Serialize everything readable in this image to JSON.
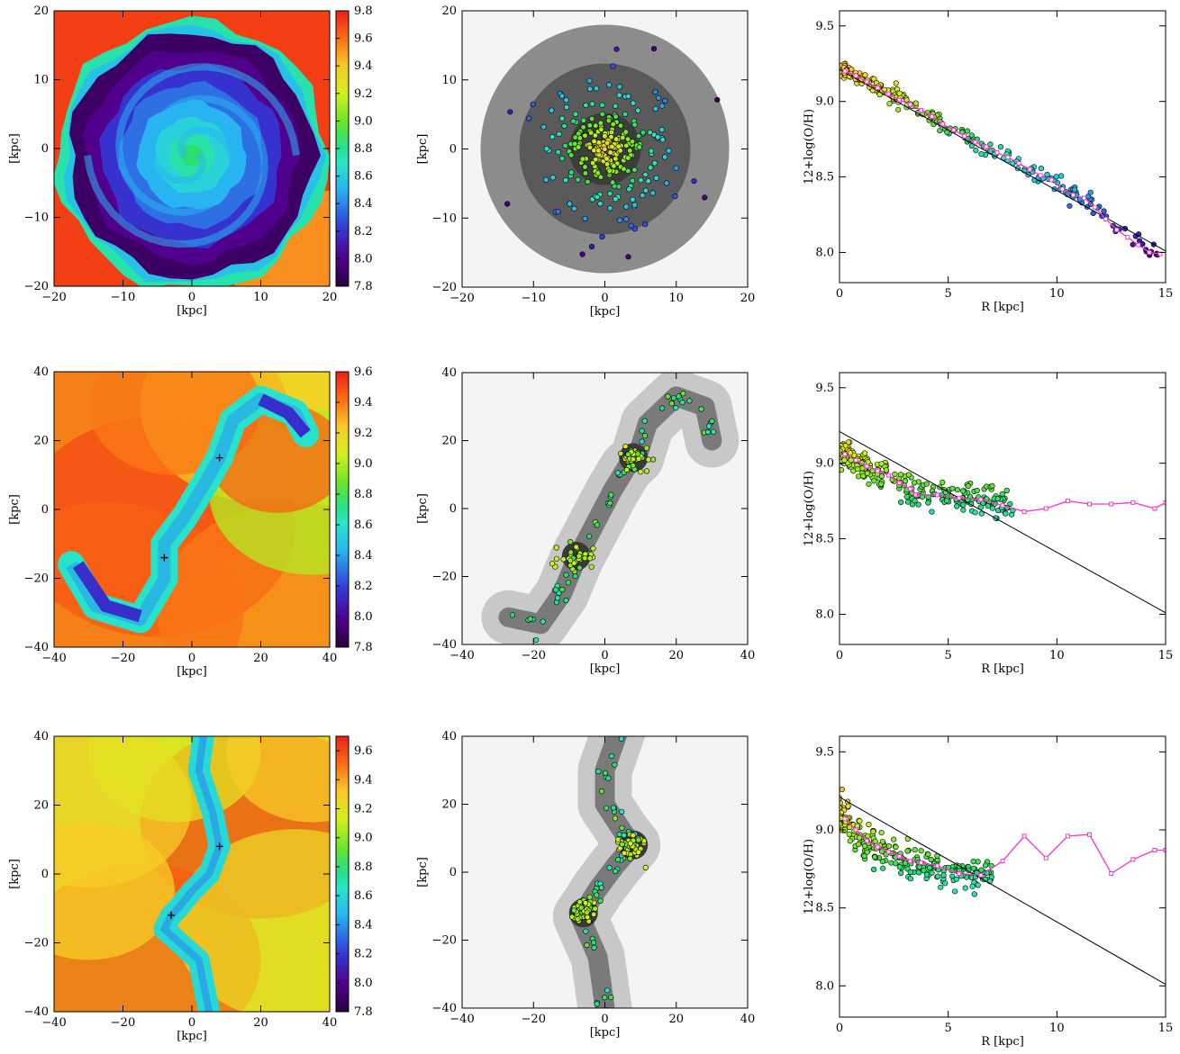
{
  "figure": {
    "rows": 3,
    "columns": [
      "metallicity-map",
      "stellar-density-map",
      "radial-gradient"
    ]
  },
  "colors": {
    "gradient_line": "#000000",
    "binned_profile": "#ff33cc",
    "point_stroke": "#000000"
  },
  "chart_data": [
    {
      "type": "heatmap",
      "panel": "row1-col1",
      "colormap": "rainbow",
      "xlabel": "[kpc]",
      "ylabel": "[kpc]",
      "xlim": [
        -20,
        20
      ],
      "ylim": [
        -20,
        20
      ],
      "xticks": [
        "−20",
        "−10",
        "0",
        "10",
        "20"
      ],
      "yticks": [
        "−20",
        "−10",
        "0",
        "10",
        "20"
      ],
      "colorbar": {
        "min": 7.8,
        "max": 9.8,
        "ticks": [
          "7.8",
          "8.0",
          "8.2",
          "8.4",
          "8.6",
          "8.8",
          "9.0",
          "9.2",
          "9.4",
          "9.6",
          "9.8"
        ]
      },
      "description_values": {
        "background": 9.7,
        "disk_edge": 7.9,
        "disk_mid": 8.3,
        "center": 8.8
      }
    },
    {
      "type": "scatter",
      "panel": "row1-col2",
      "background": "grayscale-density",
      "xlabel": "[kpc]",
      "ylabel": "[kpc]",
      "xlim": [
        -20,
        20
      ],
      "ylim": [
        -20,
        20
      ],
      "xticks": [
        "−20",
        "−10",
        "0",
        "10",
        "20"
      ],
      "yticks": [
        "−20",
        "−10",
        "0",
        "10",
        "20"
      ],
      "points_note": "star-forming regions, color = 12+log(O/H)"
    },
    {
      "type": "line",
      "panel": "row1-col3",
      "xlabel": "R [kpc]",
      "ylabel": "12+log(O/H)",
      "xlim": [
        0,
        15
      ],
      "ylim": [
        7.8,
        9.6
      ],
      "xticks": [
        "0",
        "5",
        "10",
        "15"
      ],
      "yticks": [
        "8.0",
        "8.5",
        "9.0",
        "9.5"
      ],
      "series": [
        {
          "kind": "line",
          "x": [
            0,
            15
          ],
          "y": [
            9.21,
            8.01
          ]
        },
        {
          "kind": "binned",
          "x": [
            0.25,
            0.75,
            1.25,
            1.75,
            2.25,
            2.75,
            3.25,
            3.75,
            4.25,
            4.75,
            5.25,
            5.75,
            6.25,
            6.75,
            7.25,
            7.75,
            8.25,
            8.75,
            9.25,
            9.75,
            10.25,
            10.75,
            11.25,
            11.75,
            12.25,
            12.75,
            13.25,
            13.75,
            14.25,
            14.75
          ],
          "y": [
            9.2,
            9.17,
            9.13,
            9.09,
            9.05,
            9.01,
            8.98,
            8.94,
            8.9,
            8.85,
            8.81,
            8.77,
            8.73,
            8.7,
            8.66,
            8.63,
            8.59,
            8.55,
            8.51,
            8.48,
            8.42,
            8.38,
            8.36,
            8.3,
            8.22,
            8.15,
            8.1,
            8.05,
            8.0,
            7.99
          ]
        }
      ]
    },
    {
      "type": "heatmap",
      "panel": "row2-col1",
      "colormap": "rainbow",
      "xlabel": "[kpc]",
      "ylabel": "[kpc]",
      "xlim": [
        -40,
        40
      ],
      "ylim": [
        -40,
        40
      ],
      "xticks": [
        "−40",
        "−20",
        "0",
        "20",
        "40"
      ],
      "yticks": [
        "−40",
        "−20",
        "0",
        "20",
        "40"
      ],
      "colorbar": {
        "min": 7.8,
        "max": 9.6,
        "ticks": [
          "7.8",
          "8.0",
          "8.2",
          "8.4",
          "8.6",
          "8.8",
          "9.0",
          "9.2",
          "9.4",
          "9.6"
        ]
      },
      "markers": [
        [
          8,
          15
        ],
        [
          -8,
          -14
        ]
      ]
    },
    {
      "type": "scatter",
      "panel": "row2-col2",
      "background": "grayscale-density",
      "xlabel": "[kpc]",
      "ylabel": "[kpc]",
      "xlim": [
        -40,
        40
      ],
      "ylim": [
        -40,
        40
      ],
      "xticks": [
        "−40",
        "−20",
        "0",
        "20",
        "40"
      ],
      "yticks": [
        "−40",
        "−20",
        "0",
        "20",
        "40"
      ]
    },
    {
      "type": "line",
      "panel": "row2-col3",
      "xlabel": "R [kpc]",
      "ylabel": "12+log(O/H)",
      "xlim": [
        0,
        15
      ],
      "ylim": [
        7.8,
        9.6
      ],
      "xticks": [
        "0",
        "5",
        "10",
        "15"
      ],
      "yticks": [
        "8.0",
        "8.5",
        "9.0",
        "9.5"
      ],
      "series": [
        {
          "kind": "line",
          "x": [
            0,
            15
          ],
          "y": [
            9.21,
            8.01
          ]
        },
        {
          "kind": "binned",
          "x": [
            0.25,
            0.75,
            1.25,
            1.75,
            2.25,
            2.75,
            3.25,
            3.5,
            4.5,
            5.5,
            6.5,
            7.5,
            8.5,
            9.5,
            10.5,
            11.5,
            12.5,
            13.5,
            14.5,
            15
          ],
          "y": [
            9.06,
            9.02,
            8.98,
            8.95,
            8.92,
            8.87,
            8.83,
            8.79,
            8.79,
            8.77,
            8.76,
            8.72,
            8.68,
            8.7,
            8.75,
            8.73,
            8.73,
            8.74,
            8.7,
            8.74
          ]
        }
      ]
    },
    {
      "type": "heatmap",
      "panel": "row3-col1",
      "colormap": "rainbow",
      "xlabel": "[kpc]",
      "ylabel": "[kpc]",
      "xlim": [
        -40,
        40
      ],
      "ylim": [
        -40,
        40
      ],
      "xticks": [
        "−40",
        "−20",
        "0",
        "20",
        "40"
      ],
      "yticks": [
        "−40",
        "−20",
        "0",
        "20",
        "40"
      ],
      "colorbar": {
        "min": 7.8,
        "max": 9.7,
        "ticks": [
          "7.8",
          "8.0",
          "8.2",
          "8.4",
          "8.6",
          "8.8",
          "9.0",
          "9.2",
          "9.4",
          "9.6"
        ]
      },
      "markers": [
        [
          8,
          8
        ],
        [
          -6,
          -12
        ]
      ]
    },
    {
      "type": "scatter",
      "panel": "row3-col2",
      "background": "grayscale-density",
      "xlabel": "[kpc]",
      "ylabel": "[kpc]",
      "xlim": [
        -40,
        40
      ],
      "ylim": [
        -40,
        40
      ],
      "xticks": [
        "−40",
        "−20",
        "0",
        "20",
        "40"
      ],
      "yticks": [
        "−40",
        "−20",
        "0",
        "20",
        "40"
      ]
    },
    {
      "type": "line",
      "panel": "row3-col3",
      "xlabel": "R [kpc]",
      "ylabel": "12+log(O/H)",
      "xlim": [
        0,
        15
      ],
      "ylim": [
        7.8,
        9.6
      ],
      "xticks": [
        "0",
        "5",
        "10",
        "15"
      ],
      "yticks": [
        "8.0",
        "8.5",
        "9.0",
        "9.5"
      ],
      "series": [
        {
          "kind": "line",
          "x": [
            0,
            15
          ],
          "y": [
            9.21,
            8.01
          ]
        },
        {
          "kind": "binned",
          "x": [
            0.25,
            0.75,
            1.25,
            1.75,
            2.25,
            2.75,
            3.25,
            3.75,
            4.5,
            5.5,
            6.5,
            7.5,
            8.5,
            9.5,
            10.5,
            11.5,
            12.5,
            13.5,
            14.5,
            15
          ],
          "y": [
            9.07,
            9.0,
            8.93,
            8.89,
            8.86,
            8.83,
            8.8,
            8.79,
            8.77,
            8.72,
            8.71,
            8.8,
            8.96,
            8.82,
            8.96,
            8.97,
            8.72,
            8.81,
            8.87,
            8.87
          ]
        }
      ]
    }
  ]
}
